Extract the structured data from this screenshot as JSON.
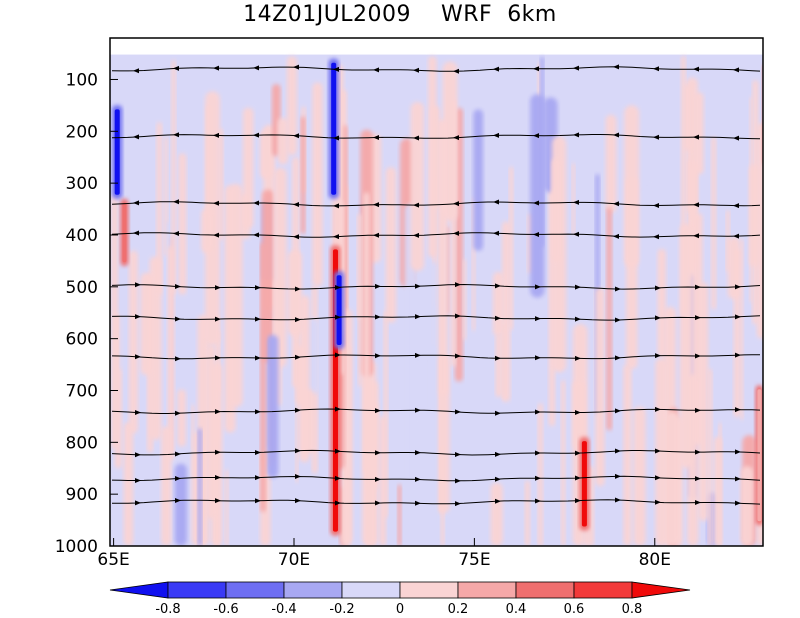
{
  "title": "14Z01JUL2009    WRF  6km",
  "chart_data": {
    "type": "heatmap",
    "title": "14Z01JUL2009    WRF  6km",
    "x_ticks": [
      "65E",
      "70E",
      "75E",
      "80E"
    ],
    "x_tick_values": [
      65,
      70,
      75,
      80
    ],
    "xlim": [
      64.9,
      83.0
    ],
    "y_ticks": [
      "100",
      "200",
      "300",
      "400",
      "500",
      "600",
      "700",
      "800",
      "900",
      "1000"
    ],
    "y_tick_values": [
      100,
      200,
      300,
      400,
      500,
      600,
      700,
      800,
      900,
      1000
    ],
    "ylim": [
      1000,
      20
    ],
    "colorbar": {
      "labels": [
        "-0.8",
        "-0.6",
        "-0.4",
        "-0.2",
        "0",
        "0.2",
        "0.4",
        "0.6",
        "0.8"
      ],
      "levels": [
        -0.8,
        -0.6,
        -0.4,
        -0.2,
        0,
        0.2,
        0.4,
        0.6,
        0.8
      ],
      "colors": [
        "#1010f0",
        "#3a3af5",
        "#6e6ef2",
        "#a8a8f2",
        "#d8d8f8",
        "#fad4d4",
        "#f5a8a8",
        "#ef6f6f",
        "#f23a3a",
        "#f00a0a"
      ]
    },
    "field_features": [
      {
        "kind": "vertical-streak",
        "x": 71.15,
        "y_top": 420,
        "y_bottom": 980,
        "value": 0.9
      },
      {
        "kind": "vertical-streak",
        "x": 71.1,
        "y_top": 60,
        "y_bottom": 330,
        "value": -0.9
      },
      {
        "kind": "vertical-streak",
        "x": 71.25,
        "y_top": 470,
        "y_bottom": 620,
        "value": -0.8
      },
      {
        "kind": "vertical-streak",
        "x": 65.1,
        "y_top": 150,
        "y_bottom": 330,
        "value": -0.9
      },
      {
        "kind": "vertical-streak",
        "x": 65.3,
        "y_top": 330,
        "y_bottom": 460,
        "value": 0.5
      },
      {
        "kind": "vertical-streak",
        "x": 78.05,
        "y_top": 790,
        "y_bottom": 970,
        "value": 0.9
      },
      {
        "kind": "vertical-streak",
        "x": 82.9,
        "y_top": 690,
        "y_bottom": 960,
        "value": 0.4
      }
    ],
    "streamlines": [
      {
        "y": 80,
        "direction": "west"
      },
      {
        "y": 210,
        "direction": "west"
      },
      {
        "y": 340,
        "direction": "west"
      },
      {
        "y": 400,
        "direction": "west"
      },
      {
        "y": 500,
        "direction": "east"
      },
      {
        "y": 560,
        "direction": "east"
      },
      {
        "y": 635,
        "direction": "east"
      },
      {
        "y": 740,
        "direction": "east"
      },
      {
        "y": 820,
        "direction": "east"
      },
      {
        "y": 870,
        "direction": "east"
      },
      {
        "y": 915,
        "direction": "east"
      }
    ]
  }
}
